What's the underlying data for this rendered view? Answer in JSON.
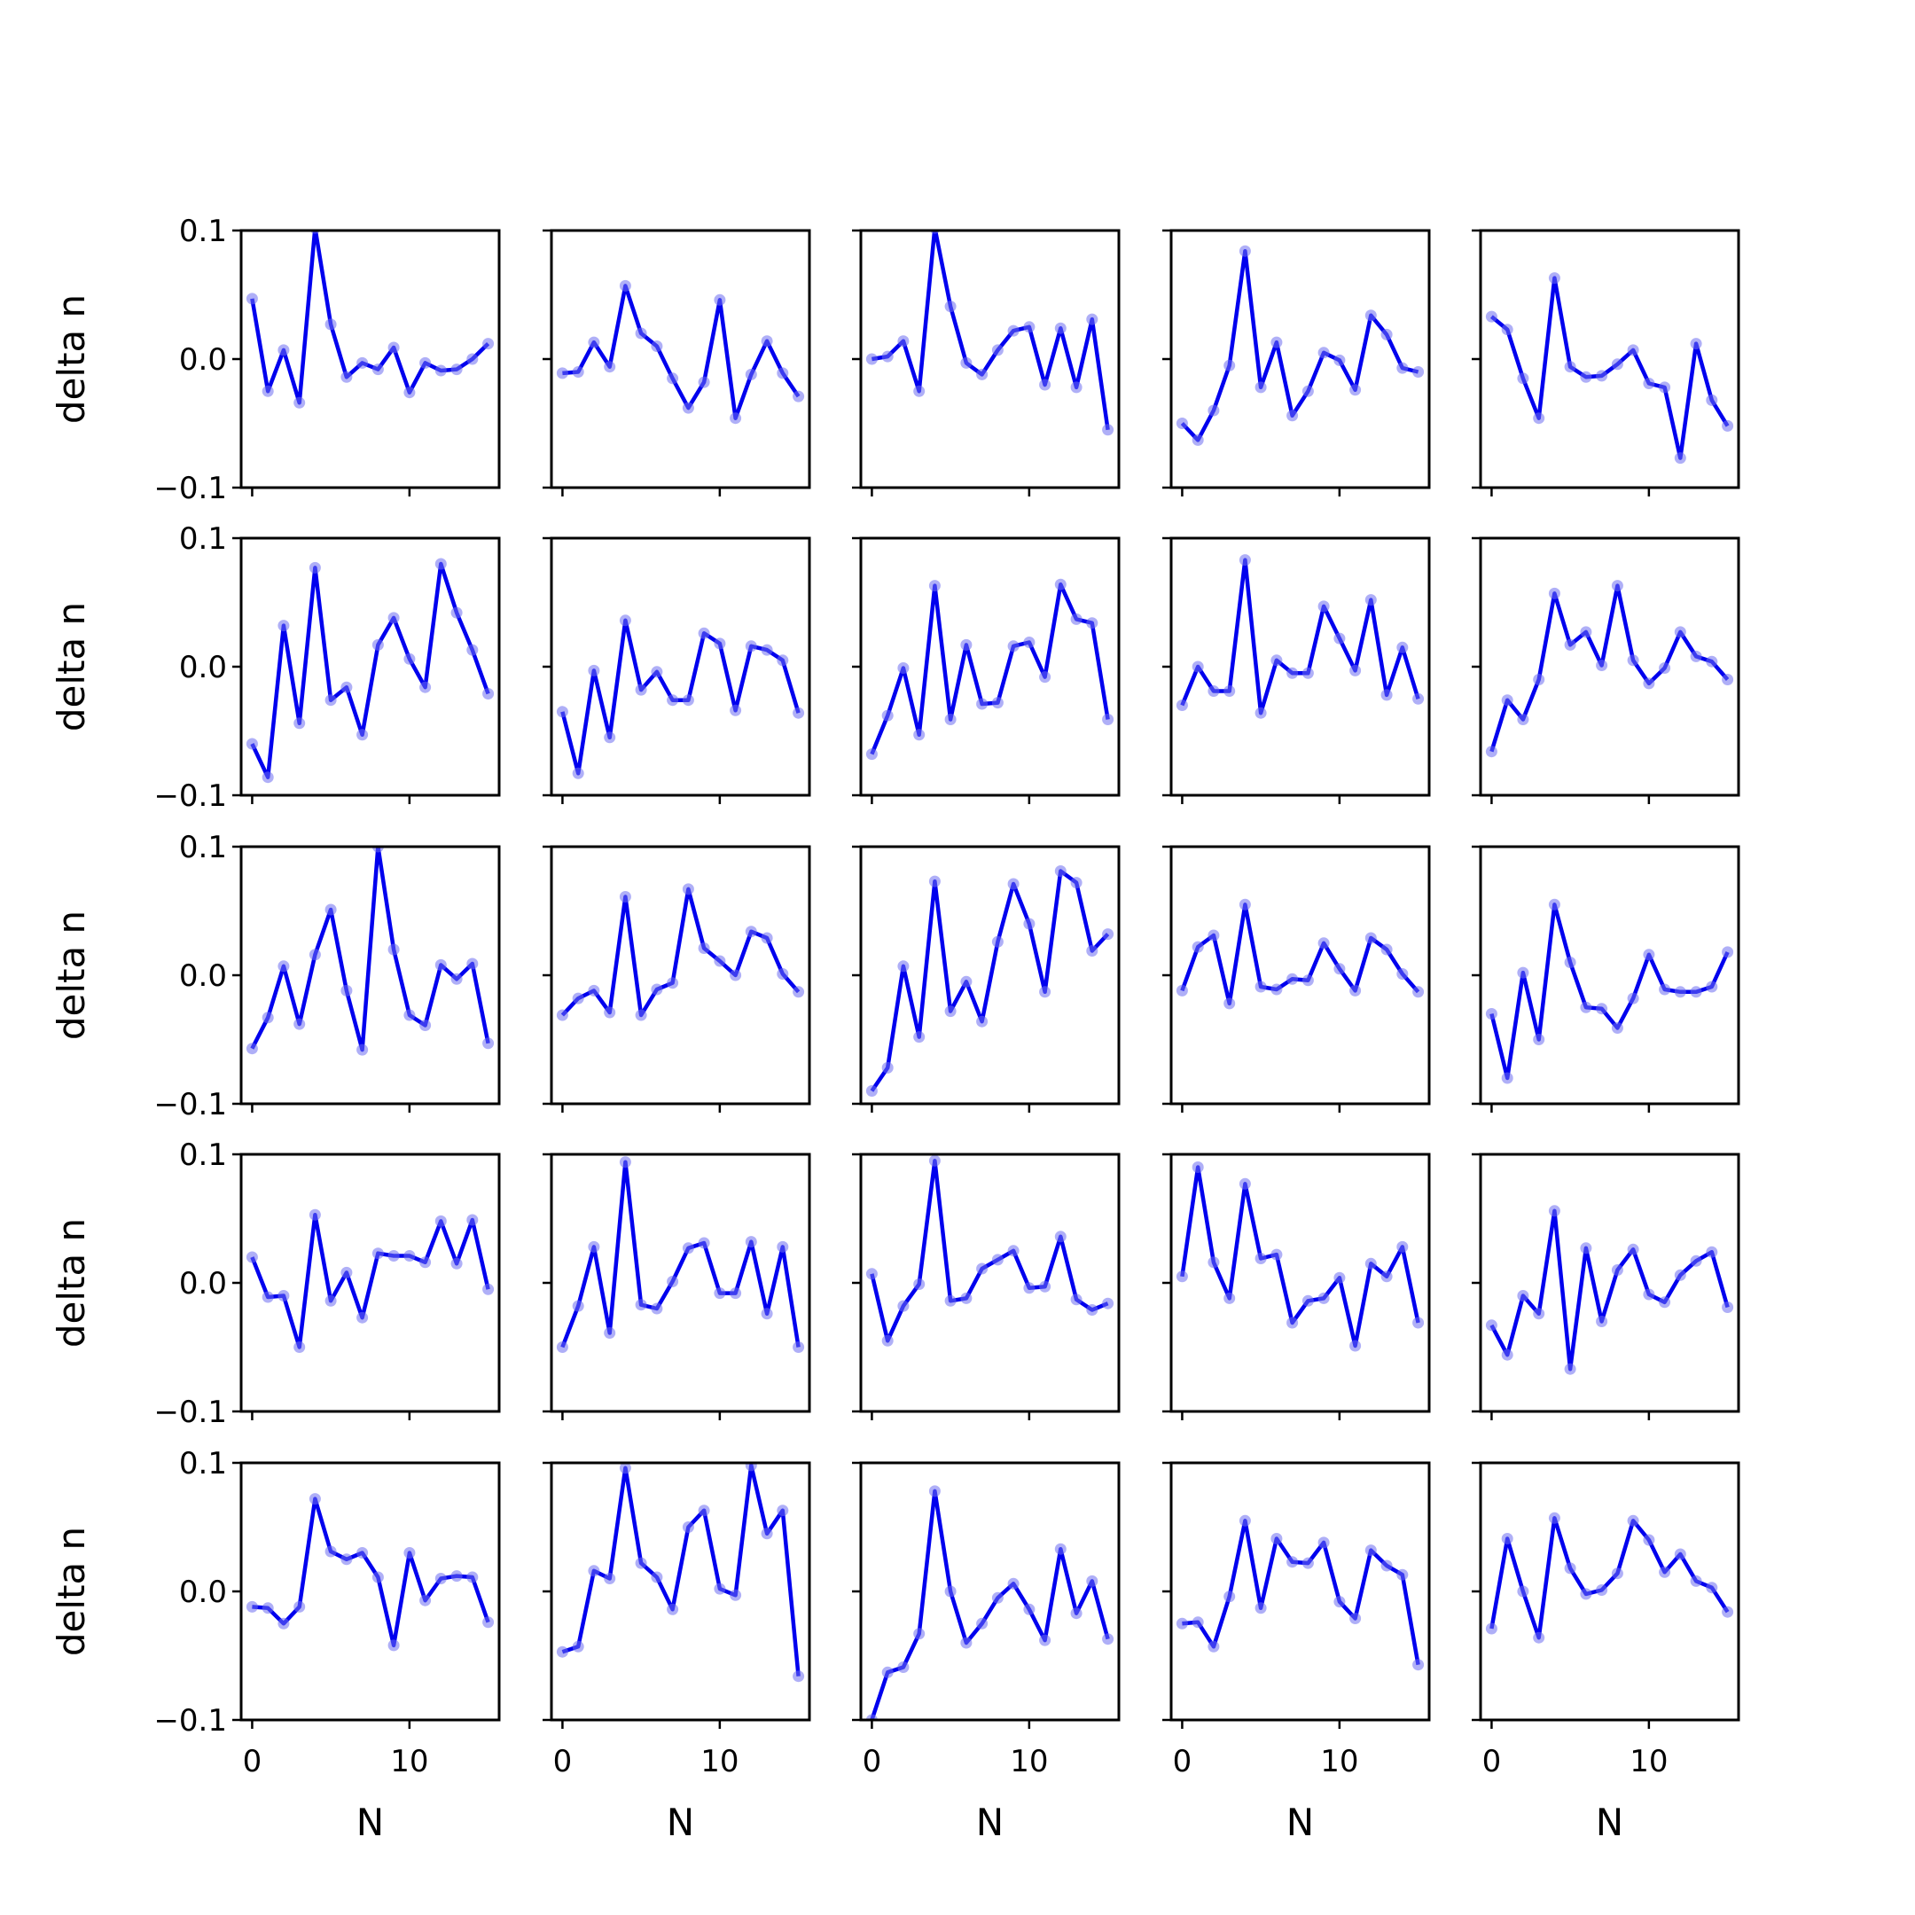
{
  "chart_data": {
    "type": "line",
    "layout": "5x5 grid of subplots",
    "xlabel": "N",
    "ylabel": "delta n",
    "ylim": [
      -0.1,
      0.1
    ],
    "yticks": [
      -0.1,
      0.0,
      0.1
    ],
    "ytick_labels": [
      "−0.1",
      "0.0",
      "0.1"
    ],
    "xlim": [
      -0.7,
      15.7
    ],
    "xticks": [
      0,
      10
    ],
    "xtick_labels": [
      "0",
      "10"
    ],
    "x": [
      0,
      1,
      2,
      3,
      4,
      5,
      6,
      7,
      8,
      9,
      10,
      11,
      12,
      13,
      14,
      15
    ],
    "line_color": "#0000ee",
    "marker_color": "#6e6ef0",
    "grid": false,
    "panels": [
      [
        0.047,
        -0.025,
        0.007,
        -0.034,
        0.102,
        0.027,
        -0.014,
        -0.003,
        -0.008,
        0.009,
        -0.026,
        -0.003,
        -0.009,
        -0.008,
        0.0,
        0.012
      ],
      [
        -0.011,
        -0.01,
        0.013,
        -0.006,
        0.057,
        0.02,
        0.01,
        -0.015,
        -0.038,
        -0.018,
        0.046,
        -0.046,
        -0.012,
        0.014,
        -0.011,
        -0.029
      ],
      [
        0.0,
        0.002,
        0.014,
        -0.025,
        0.102,
        0.041,
        -0.003,
        -0.012,
        0.007,
        0.022,
        0.025,
        -0.02,
        0.024,
        -0.022,
        0.031,
        -0.055
      ],
      [
        -0.05,
        -0.063,
        -0.04,
        -0.005,
        0.084,
        -0.022,
        0.013,
        -0.044,
        -0.025,
        0.005,
        -0.001,
        -0.024,
        0.034,
        0.019,
        -0.007,
        -0.01
      ],
      [
        0.033,
        0.023,
        -0.015,
        -0.046,
        0.063,
        -0.006,
        -0.014,
        -0.013,
        -0.004,
        0.007,
        -0.019,
        -0.022,
        -0.077,
        0.012,
        -0.032,
        -0.052
      ],
      [
        -0.06,
        -0.086,
        0.032,
        -0.044,
        0.077,
        -0.026,
        -0.016,
        -0.053,
        0.017,
        0.038,
        0.006,
        -0.016,
        0.08,
        0.042,
        0.013,
        -0.021
      ],
      [
        -0.035,
        -0.083,
        -0.003,
        -0.055,
        0.036,
        -0.018,
        -0.004,
        -0.026,
        -0.026,
        0.026,
        0.018,
        -0.034,
        0.016,
        0.013,
        0.005,
        -0.036
      ],
      [
        -0.068,
        -0.038,
        -0.001,
        -0.053,
        0.063,
        -0.041,
        0.017,
        -0.029,
        -0.028,
        0.016,
        0.019,
        -0.008,
        0.064,
        0.037,
        0.034,
        -0.041
      ],
      [
        -0.03,
        0.0,
        -0.019,
        -0.019,
        0.083,
        -0.036,
        0.005,
        -0.005,
        -0.005,
        0.047,
        0.022,
        -0.003,
        0.052,
        -0.022,
        0.015,
        -0.025
      ],
      [
        -0.066,
        -0.026,
        -0.041,
        -0.01,
        0.057,
        0.017,
        0.027,
        0.001,
        0.063,
        0.005,
        -0.013,
        -0.001,
        0.027,
        0.008,
        0.004,
        -0.01
      ],
      [
        -0.057,
        -0.033,
        0.007,
        -0.038,
        0.016,
        0.051,
        -0.012,
        -0.058,
        0.1,
        0.02,
        -0.031,
        -0.039,
        0.008,
        -0.003,
        0.009,
        -0.053
      ],
      [
        -0.031,
        -0.018,
        -0.012,
        -0.029,
        0.061,
        -0.031,
        -0.011,
        -0.006,
        0.067,
        0.021,
        0.011,
        0.0,
        0.034,
        0.029,
        0.001,
        -0.013
      ],
      [
        -0.09,
        -0.072,
        0.007,
        -0.048,
        0.073,
        -0.028,
        -0.005,
        -0.036,
        0.026,
        0.071,
        0.04,
        -0.013,
        0.081,
        0.072,
        0.019,
        0.032
      ],
      [
        -0.012,
        0.022,
        0.031,
        -0.022,
        0.055,
        -0.009,
        -0.011,
        -0.003,
        -0.004,
        0.025,
        0.005,
        -0.012,
        0.029,
        0.02,
        0.001,
        -0.013
      ],
      [
        -0.03,
        -0.08,
        0.002,
        -0.05,
        0.055,
        0.01,
        -0.025,
        -0.026,
        -0.041,
        -0.018,
        0.016,
        -0.011,
        -0.013,
        -0.013,
        -0.009,
        0.018
      ],
      [
        0.02,
        -0.011,
        -0.01,
        -0.05,
        0.053,
        -0.014,
        0.008,
        -0.027,
        0.023,
        0.021,
        0.021,
        0.016,
        0.048,
        0.015,
        0.049,
        -0.005
      ],
      [
        -0.05,
        -0.018,
        0.028,
        -0.039,
        0.094,
        -0.017,
        -0.02,
        0.001,
        0.027,
        0.031,
        -0.008,
        -0.008,
        0.032,
        -0.024,
        0.028,
        -0.05
      ],
      [
        0.007,
        -0.045,
        -0.018,
        -0.001,
        0.095,
        -0.014,
        -0.012,
        0.011,
        0.018,
        0.025,
        -0.004,
        -0.003,
        0.036,
        -0.013,
        -0.021,
        -0.016
      ],
      [
        0.005,
        0.09,
        0.016,
        -0.012,
        0.077,
        0.019,
        0.022,
        -0.031,
        -0.014,
        -0.012,
        0.004,
        -0.049,
        0.015,
        0.005,
        0.028,
        -0.031
      ],
      [
        -0.033,
        -0.056,
        -0.01,
        -0.024,
        0.056,
        -0.067,
        0.027,
        -0.03,
        0.01,
        0.026,
        -0.009,
        -0.015,
        0.006,
        0.017,
        0.024,
        -0.019
      ],
      [
        -0.012,
        -0.013,
        -0.025,
        -0.012,
        0.072,
        0.031,
        0.025,
        0.03,
        0.011,
        -0.042,
        0.03,
        -0.007,
        0.01,
        0.012,
        0.011,
        -0.024
      ],
      [
        -0.047,
        -0.043,
        0.016,
        0.01,
        0.096,
        0.022,
        0.011,
        -0.014,
        0.05,
        0.063,
        0.002,
        -0.003,
        0.098,
        0.045,
        0.063,
        -0.066
      ],
      [
        -0.1,
        -0.063,
        -0.059,
        -0.033,
        0.078,
        0.0,
        -0.04,
        -0.025,
        -0.005,
        0.006,
        -0.014,
        -0.038,
        0.033,
        -0.017,
        0.008,
        -0.037
      ],
      [
        -0.025,
        -0.024,
        -0.043,
        -0.004,
        0.055,
        -0.013,
        0.041,
        0.023,
        0.022,
        0.038,
        -0.008,
        -0.021,
        0.032,
        0.02,
        0.013,
        -0.057
      ],
      [
        -0.029,
        0.041,
        0.0,
        -0.036,
        0.057,
        0.018,
        -0.002,
        0.001,
        0.014,
        0.055,
        0.04,
        0.015,
        0.029,
        0.008,
        0.003,
        -0.016
      ]
    ]
  }
}
